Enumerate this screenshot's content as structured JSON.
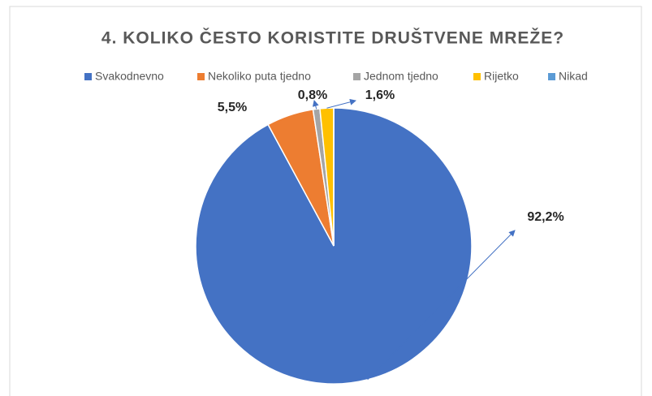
{
  "chart_data": {
    "type": "pie",
    "title": "4. KOLIKO ČESTO KORISTITE DRUŠTVENE MREŽE?",
    "categories": [
      "Svakodnevno",
      "Nekoliko puta tjedno",
      "Jednom tjedno",
      "Rijetko",
      "Nikad"
    ],
    "values": [
      92.2,
      5.5,
      0.8,
      1.6,
      0
    ],
    "value_labels": [
      "92,2%",
      "5,5%",
      "0,8%",
      "1,6%",
      null
    ],
    "colors": [
      "#4472c4",
      "#ed7d31",
      "#a5a5a5",
      "#ffc000",
      "#5b9bd5"
    ],
    "legend": "top"
  }
}
